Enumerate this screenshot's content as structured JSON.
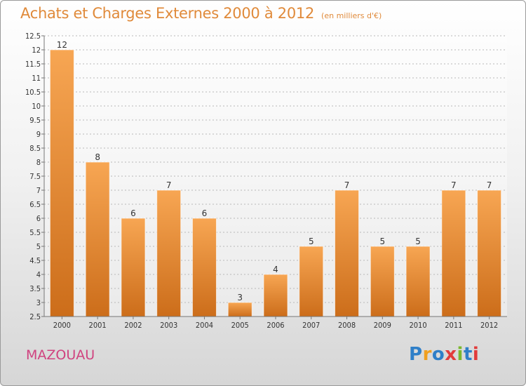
{
  "title": "Achats et Charges Externes 2000 à 2012",
  "subtitle": "(en milliers d'€)",
  "commune": "MAZOUAU",
  "logo": {
    "text": "Proxiti",
    "colors": [
      "#2f7fc8",
      "#f0a020",
      "#2f7fc8",
      "#e23b3b",
      "#7ab82e",
      "#2f7fc8",
      "#e23b3b"
    ]
  },
  "colors": {
    "title": "#e08a3a",
    "bar_top": "#f7a653",
    "bar_bottom": "#cc6d1a",
    "commune": "#d0427f"
  },
  "chart_data": {
    "type": "bar",
    "categories": [
      "2000",
      "2001",
      "2002",
      "2003",
      "2004",
      "2005",
      "2006",
      "2007",
      "2008",
      "2009",
      "2010",
      "2011",
      "2012"
    ],
    "values": [
      12,
      8,
      6,
      7,
      6,
      3,
      4,
      5,
      7,
      5,
      5,
      7,
      7
    ],
    "data_labels": [
      "12",
      "8",
      "6",
      "7",
      "6",
      "3",
      "4",
      "5",
      "7",
      "5",
      "5",
      "7",
      "7"
    ],
    "ylim": [
      2.5,
      12.5
    ],
    "yticks": [
      "2.5",
      "3",
      "3.5",
      "4",
      "4.5",
      "5",
      "5.5",
      "6",
      "6.5",
      "7",
      "7.5",
      "8",
      "8.5",
      "9",
      "9.5",
      "10",
      "10.5",
      "11",
      "11.5",
      "12",
      "12.5"
    ],
    "grid": "horizontal dashed"
  }
}
